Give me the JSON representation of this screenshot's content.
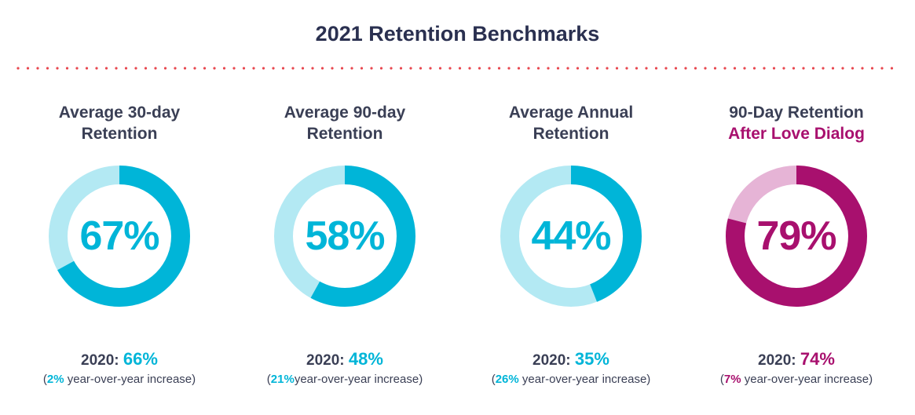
{
  "title": "2021 Retention Benchmarks",
  "colors": {
    "title": "#2a3050",
    "divider": "#e8474f",
    "teal": "#00b5d8",
    "teal_light": "#b3e9f3",
    "magenta": "#a8106e",
    "magenta_light": "#e6b4d6"
  },
  "chart_data": [
    {
      "type": "pie",
      "title_line1": "Average 30-day",
      "title_line2": "Retention",
      "value": 67,
      "value_label": "67%",
      "prev_label": "2020:",
      "prev_value": "66%",
      "note_open": "(",
      "note_pct": "2%",
      "note_text": " year-over-year increase)",
      "color": "#00b5d8",
      "color_light": "#b3e9f3"
    },
    {
      "type": "pie",
      "title_line1": "Average 90-day",
      "title_line2": "Retention",
      "value": 58,
      "value_label": "58%",
      "prev_label": "2020:",
      "prev_value": "48%",
      "note_open": "(",
      "note_pct": "21%",
      "note_text": "year-over-year increase)",
      "color": "#00b5d8",
      "color_light": "#b3e9f3"
    },
    {
      "type": "pie",
      "title_line1": "Average Annual",
      "title_line2": "Retention",
      "value": 44,
      "value_label": "44%",
      "prev_label": "2020:",
      "prev_value": "35%",
      "note_open": "(",
      "note_pct": "26%",
      "note_text": " year-over-year increase)",
      "color": "#00b5d8",
      "color_light": "#b3e9f3"
    },
    {
      "type": "pie",
      "title_line1": "90-Day Retention",
      "title_line2": "After Love Dialog",
      "value": 79,
      "value_label": "79%",
      "prev_label": "2020:",
      "prev_value": "74%",
      "note_open": "(",
      "note_pct": "7%",
      "note_text": " year-over-year increase)",
      "color": "#a8106e",
      "color_light": "#e6b4d6"
    }
  ]
}
